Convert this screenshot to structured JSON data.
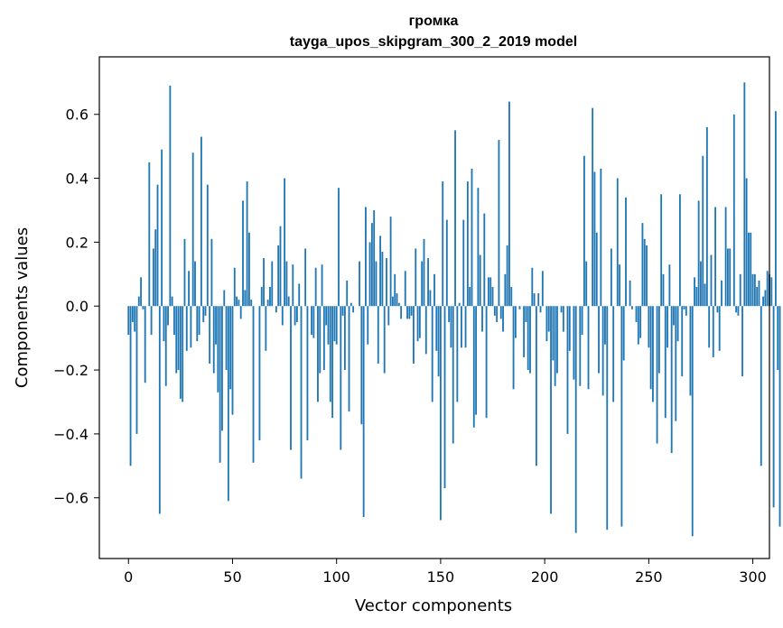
{
  "chart_data": {
    "type": "bar",
    "title_line1": "громка",
    "title_line2": "tayga_upos_skipgram_300_2_2019 model",
    "xlabel": "Vector components",
    "ylabel": "Components values",
    "xlim": [
      -14,
      308
    ],
    "ylim": [
      -0.79,
      0.78
    ],
    "xticks": [
      0,
      50,
      100,
      150,
      200,
      250,
      300
    ],
    "yticks": [
      -0.6,
      -0.4,
      -0.2,
      0.0,
      0.2,
      0.4,
      0.6
    ],
    "ytick_labels": [
      "−0.6",
      "−0.4",
      "−0.2",
      "0.0",
      "0.2",
      "0.4",
      "0.6"
    ],
    "bar_color": "#1f77b4",
    "grid": false,
    "values": [
      -0.09,
      -0.5,
      -0.05,
      -0.08,
      -0.4,
      0.03,
      0.09,
      -0.01,
      -0.24,
      0.0,
      0.45,
      -0.09,
      0.18,
      0.24,
      0.38,
      -0.65,
      0.49,
      -0.11,
      -0.25,
      -0.06,
      0.69,
      0.03,
      -0.09,
      -0.21,
      -0.2,
      -0.29,
      -0.3,
      0.21,
      -0.14,
      0.11,
      -0.13,
      0.48,
      0.14,
      -0.11,
      -0.09,
      0.53,
      -0.05,
      -0.03,
      0.38,
      -0.18,
      0.21,
      -0.21,
      -0.12,
      -0.27,
      -0.49,
      -0.39,
      0.05,
      -0.2,
      -0.61,
      -0.26,
      -0.34,
      0.12,
      0.03,
      0.02,
      -0.04,
      0.33,
      0.05,
      0.39,
      0.23,
      0.02,
      -0.49,
      0.0,
      0.0,
      -0.42,
      0.06,
      0.15,
      -0.14,
      0.02,
      0.06,
      0.14,
      0.0,
      -0.02,
      0.19,
      0.25,
      -0.06,
      0.4,
      0.14,
      0.03,
      -0.45,
      0.13,
      -0.06,
      -0.05,
      0.07,
      -0.54,
      0.0,
      0.18,
      -0.42,
      0.0,
      -0.09,
      -0.1,
      0.12,
      -0.3,
      -0.21,
      0.13,
      -0.2,
      -0.06,
      -0.12,
      -0.3,
      -0.35,
      -0.11,
      -0.12,
      0.37,
      -0.45,
      -0.03,
      -0.2,
      0.08,
      -0.33,
      0.01,
      -0.02,
      0.0,
      0.0,
      0.14,
      -0.37,
      -0.66,
      0.31,
      -0.12,
      0.2,
      0.26,
      0.3,
      0.14,
      -0.18,
      0.22,
      0.17,
      -0.21,
      0.15,
      -0.06,
      0.28,
      0.03,
      0.1,
      0.04,
      0.01,
      -0.04,
      0.0,
      0.11,
      -0.04,
      -0.04,
      -0.03,
      -0.18,
      0.18,
      -0.11,
      -0.1,
      0.14,
      0.21,
      -0.15,
      0.15,
      0.05,
      -0.3,
      0.1,
      -0.14,
      -0.22,
      -0.67,
      0.39,
      -0.57,
      0.27,
      -0.05,
      -0.13,
      -0.43,
      0.55,
      -0.3,
      0.01,
      -0.13,
      0.27,
      -0.13,
      0.39,
      0.06,
      0.43,
      -0.38,
      -0.34,
      0.37,
      0.16,
      -0.08,
      0.29,
      -0.35,
      0.09,
      0.09,
      0.06,
      -0.03,
      -0.05,
      0.52,
      -0.04,
      -0.08,
      0.1,
      0.19,
      0.64,
      0.06,
      -0.26,
      -0.1,
      0.0,
      -0.01,
      0.0,
      -0.16,
      -0.05,
      -0.2,
      -0.21,
      0.12,
      0.04,
      -0.5,
      0.04,
      -0.02,
      0.11,
      0.0,
      -0.11,
      -0.08,
      -0.65,
      -0.17,
      -0.25,
      -0.21,
      0.0,
      -0.02,
      -0.08,
      0.0,
      -0.4,
      -0.14,
      0.0,
      -0.23,
      -0.71,
      0.0,
      -0.25,
      -0.09,
      0.47,
      0.14,
      -0.26,
      0.0,
      0.62,
      0.42,
      0.23,
      -0.21,
      0.43,
      -0.28,
      -0.12,
      -0.7,
      0.0,
      0.18,
      -0.3,
      0.0,
      0.4,
      0.13,
      -0.69,
      -0.17,
      0.34,
      0.0,
      0.08,
      -0.01,
      0.0,
      -0.05,
      -0.12,
      -0.1,
      0.26,
      0.21,
      0.19,
      -0.13,
      -0.26,
      -0.3,
      0.0,
      -0.43,
      -0.21,
      0.35,
      0.1,
      -0.35,
      -0.13,
      0.13,
      -0.46,
      -0.06,
      -0.36,
      -0.11,
      0.35,
      -0.22,
      -0.01,
      -0.03,
      0.0,
      -0.28,
      -0.72,
      0.09,
      0.06,
      0.33,
      0.14,
      0.47,
      0.07,
      0.56,
      -0.13,
      0.16,
      -0.16,
      0.31,
      -0.02,
      -0.14,
      0.08,
      0.0,
      0.31,
      0.18,
      0.18,
      0.0,
      0.6,
      -0.02,
      -0.03,
      0.1,
      -0.22,
      0.7,
      0.4,
      0.23,
      0.23,
      0.1,
      0.1,
      0.06,
      0.08,
      -0.5,
      0.03,
      0.05,
      0.11,
      0.1,
      0.09,
      -0.63,
      0.61,
      -0.2,
      -0.69
    ]
  }
}
